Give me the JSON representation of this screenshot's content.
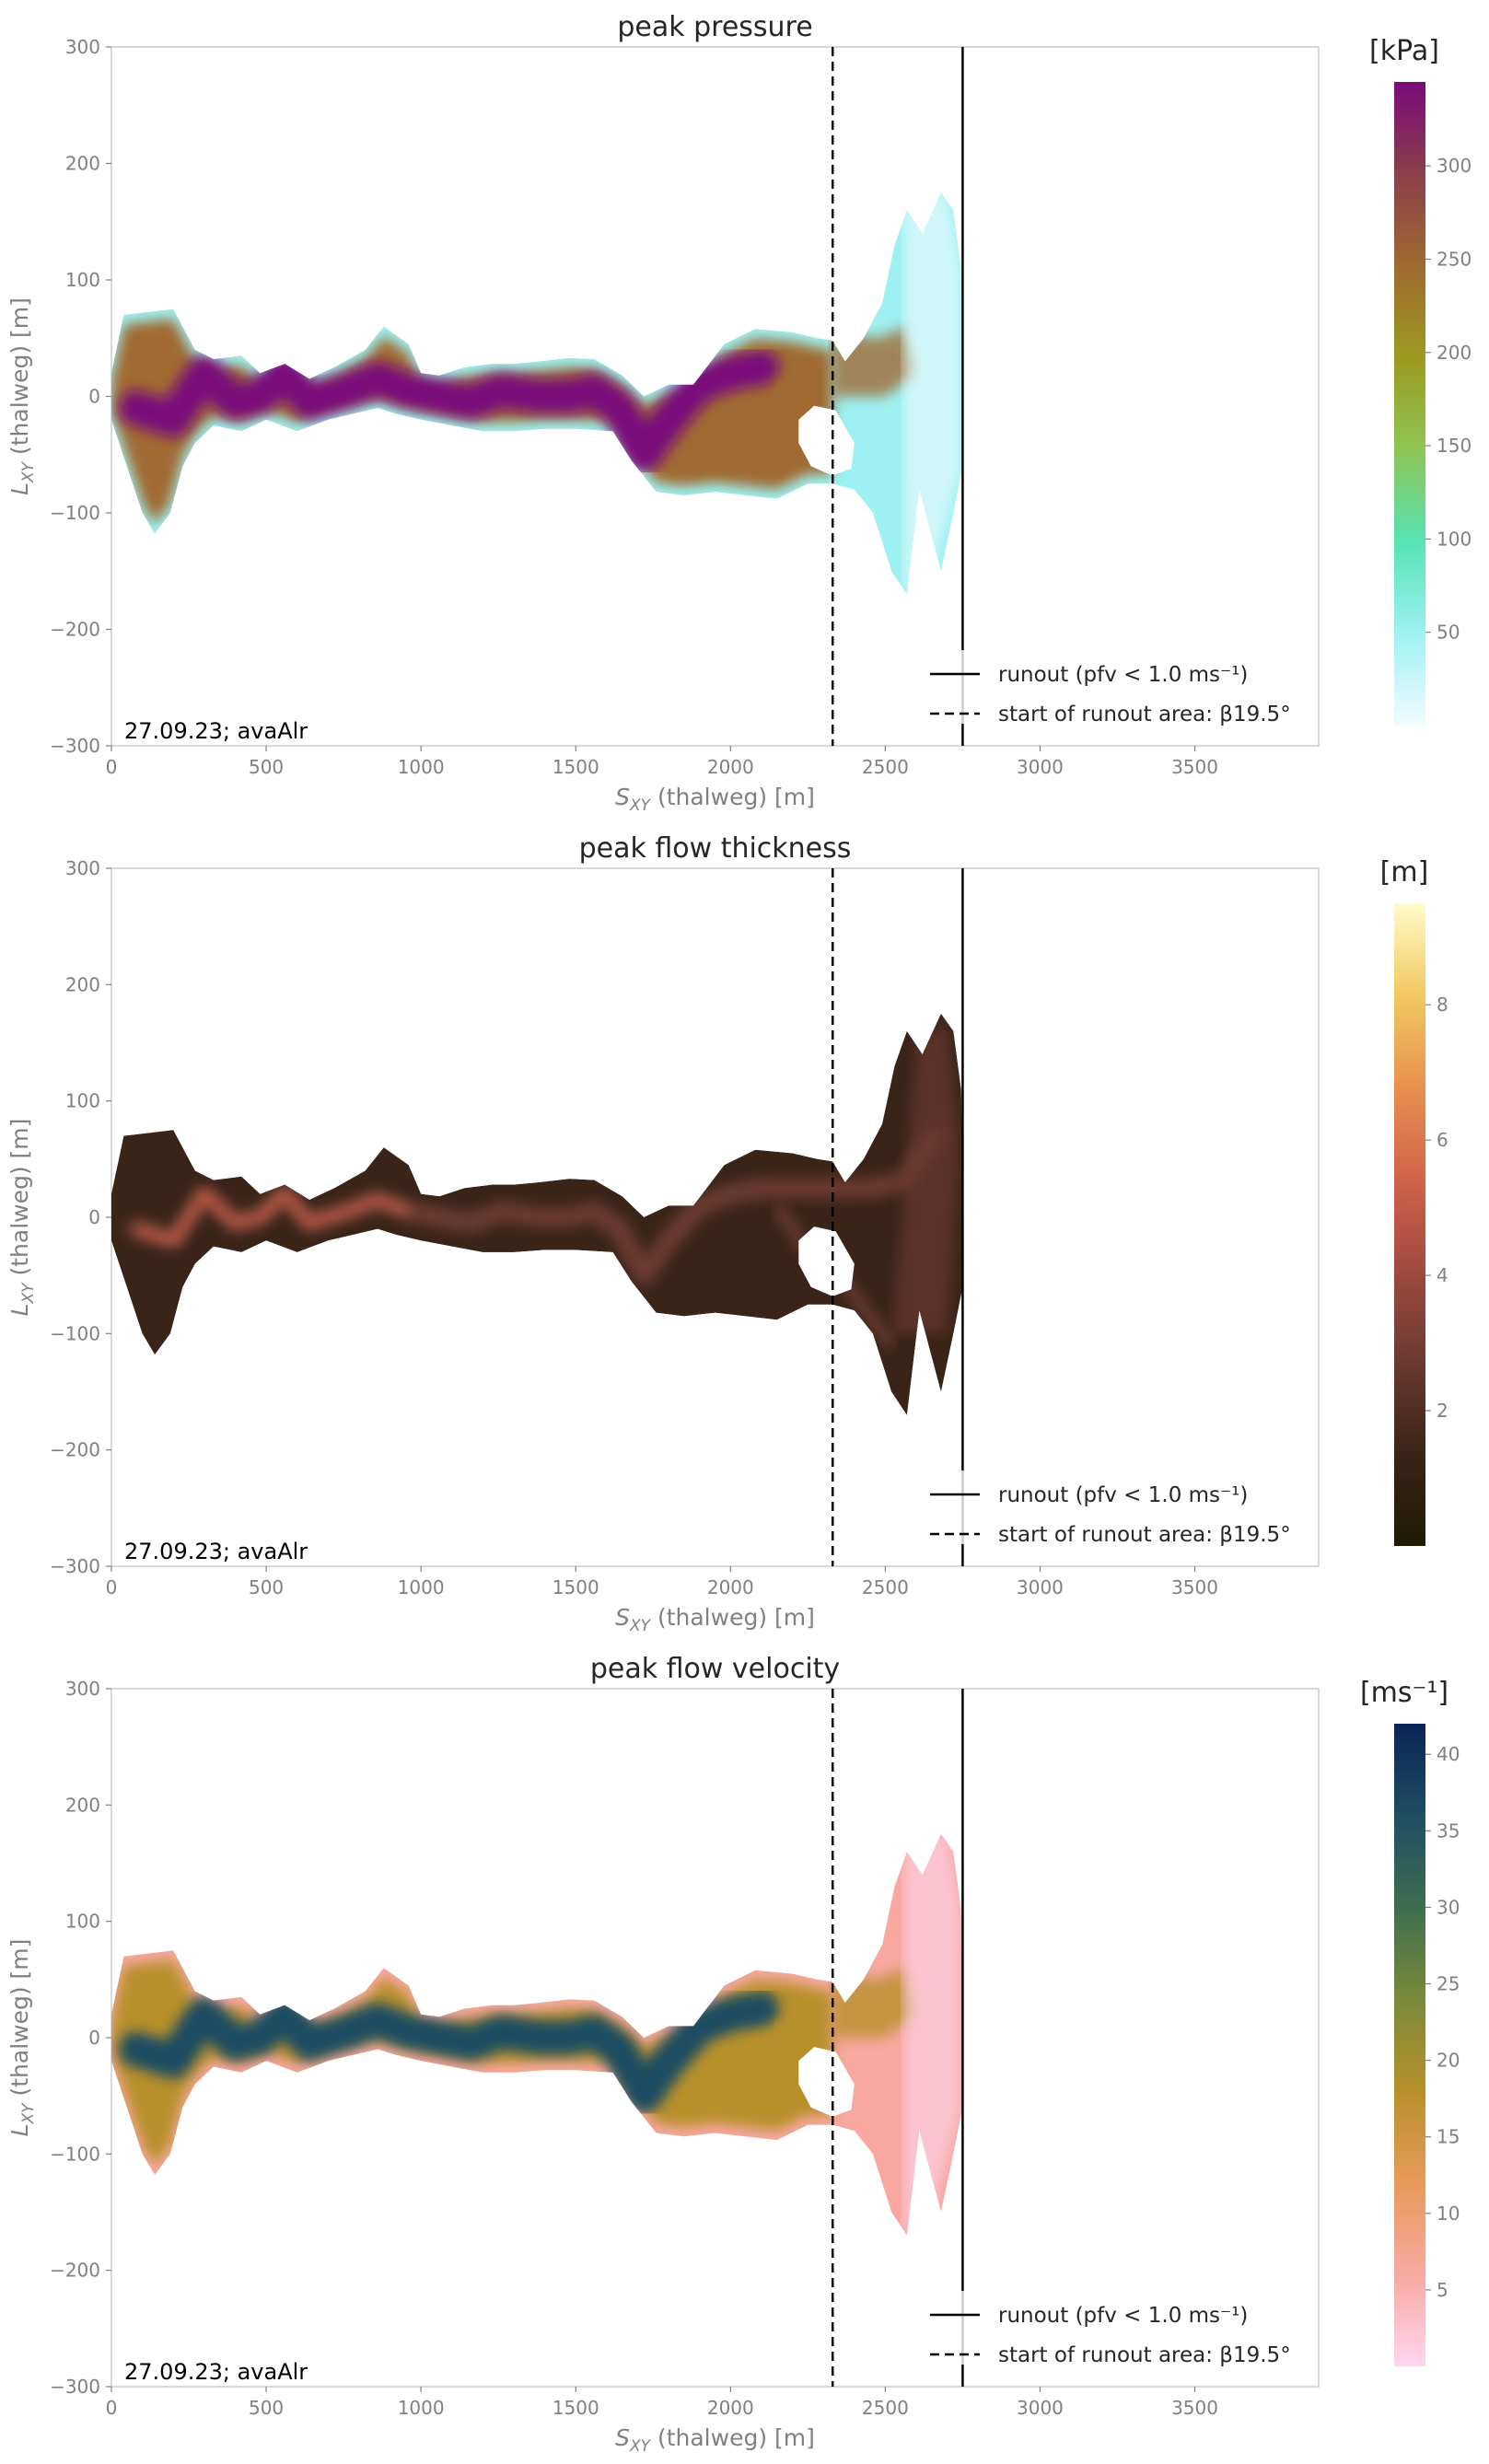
{
  "chart_data": [
    {
      "type": "heatmap",
      "title": "peak pressure",
      "xlabel_main": "S",
      "xlabel_sub": "XY",
      "xlabel_rest": " (thalweg) [m]",
      "ylabel_main": "L",
      "ylabel_sub": "XY",
      "ylabel_rest": " (thalweg) [m]",
      "xlim": [
        0,
        3900
      ],
      "ylim": [
        -300,
        300
      ],
      "xticks": [
        "0",
        "500",
        "1000",
        "1500",
        "2000",
        "2500",
        "3000",
        "3500"
      ],
      "yticks": [
        "−300",
        "−200",
        "−100",
        "0",
        "100",
        "200",
        "300"
      ],
      "colorbar": {
        "unit": "[kPa]",
        "min": 0,
        "max": 345,
        "ticks": [
          "50",
          "100",
          "150",
          "200",
          "250",
          "300"
        ],
        "colors": [
          "#f2fbff",
          "#9ef1f2",
          "#56e3b3",
          "#8fc554",
          "#9b9a1f",
          "#a06a30",
          "#8c3f4a",
          "#7a0a7a"
        ]
      },
      "runout_x": 2750,
      "runout_start_x": 2330,
      "legend": {
        "runout_label": "runout (pfv < 1.0 ms⁻¹)",
        "start_label": "start of runout area: β19.5°"
      },
      "annotation": "27.09.23; avaAlr",
      "field_hint": "pressure"
    },
    {
      "type": "heatmap",
      "title": "peak flow thickness",
      "xlabel_main": "S",
      "xlabel_sub": "XY",
      "xlabel_rest": " (thalweg) [m]",
      "ylabel_main": "L",
      "ylabel_sub": "XY",
      "ylabel_rest": " (thalweg) [m]",
      "xlim": [
        0,
        3900
      ],
      "ylim": [
        -300,
        300
      ],
      "xticks": [
        "0",
        "500",
        "1000",
        "1500",
        "2000",
        "2500",
        "3000",
        "3500"
      ],
      "yticks": [
        "−300",
        "−200",
        "−100",
        "0",
        "100",
        "200",
        "300"
      ],
      "colorbar": {
        "unit": "[m]",
        "min": 0,
        "max": 9.5,
        "ticks": [
          "2",
          "4",
          "6",
          "8"
        ],
        "colors": [
          "#1e1a04",
          "#3a2418",
          "#6a3a30",
          "#a04a40",
          "#d2624a",
          "#e8904f",
          "#f2c860",
          "#fffccc"
        ]
      },
      "runout_x": 2750,
      "runout_start_x": 2330,
      "legend": {
        "runout_label": "runout (pfv < 1.0 ms⁻¹)",
        "start_label": "start of runout area: β19.5°"
      },
      "annotation": "27.09.23; avaAlr",
      "field_hint": "thickness"
    },
    {
      "type": "heatmap",
      "title": "peak flow velocity",
      "xlabel_main": "S",
      "xlabel_sub": "XY",
      "xlabel_rest": " (thalweg) [m]",
      "ylabel_main": "L",
      "ylabel_sub": "XY",
      "ylabel_rest": " (thalweg) [m]",
      "xlim": [
        0,
        3900
      ],
      "ylim": [
        -300,
        300
      ],
      "xticks": [
        "0",
        "500",
        "1000",
        "1500",
        "2000",
        "2500",
        "3000",
        "3500"
      ],
      "yticks": [
        "−300",
        "−200",
        "−100",
        "0",
        "100",
        "200",
        "300"
      ],
      "colorbar": {
        "unit": "[ms⁻¹]",
        "min": 0,
        "max": 42,
        "ticks": [
          "5",
          "10",
          "15",
          "20",
          "25",
          "30",
          "35",
          "40"
        ],
        "colors": [
          "#ffd6f0",
          "#f8a8a0",
          "#e89a5a",
          "#b8902a",
          "#7a8a3a",
          "#3e6e50",
          "#1e4e62",
          "#0b2457"
        ]
      },
      "runout_x": 2750,
      "runout_start_x": 2330,
      "legend": {
        "runout_label": "runout (pfv < 1.0 ms⁻¹)",
        "start_label": "start of runout area: β19.5°"
      },
      "annotation": "27.09.23; avaAlr",
      "field_hint": "velocity"
    }
  ]
}
